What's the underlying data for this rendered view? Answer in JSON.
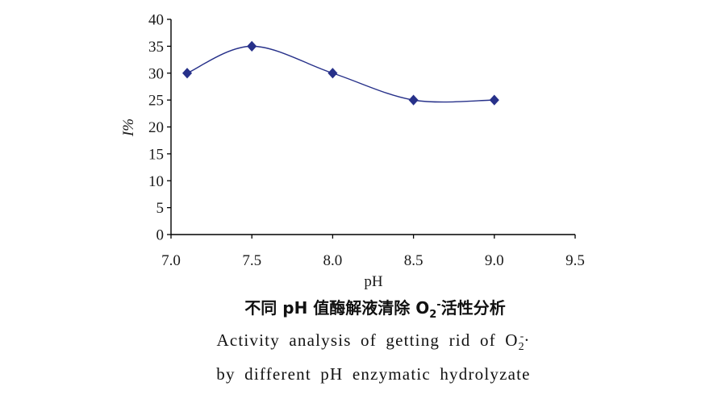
{
  "chart_data": {
    "type": "line",
    "xlabel": "pH",
    "ylabel": "I%",
    "xlim": [
      7.0,
      9.5
    ],
    "ylim": [
      0,
      40
    ],
    "x_tick_labels": [
      "7.0",
      "7.5",
      "8.0",
      "8.5",
      "9.0",
      "9.5"
    ],
    "y_tick_labels": [
      "0",
      "5",
      "10",
      "15",
      "20",
      "25",
      "30",
      "35",
      "40"
    ],
    "series": [
      {
        "x": [
          7.1,
          7.5,
          8.0,
          8.5,
          9.0
        ],
        "y": [
          30,
          35,
          30,
          25,
          25
        ],
        "color": "#27318a",
        "marker": "diamond",
        "smooth": true
      }
    ],
    "grid": false,
    "legend": "none",
    "caption": {
      "zh": {
        "before": "不同 pH 值酶解液清除 O",
        "sub": "2",
        "sup": "-",
        "after": "活性分析"
      },
      "en_line1": {
        "before": "Activity analysis of getting rid of O",
        "sub": "2",
        "sup": "-",
        "after": "·"
      },
      "en_line2": "by different pH enzymatic hydrolyzate"
    }
  },
  "colors": {
    "axis": "#000000"
  }
}
